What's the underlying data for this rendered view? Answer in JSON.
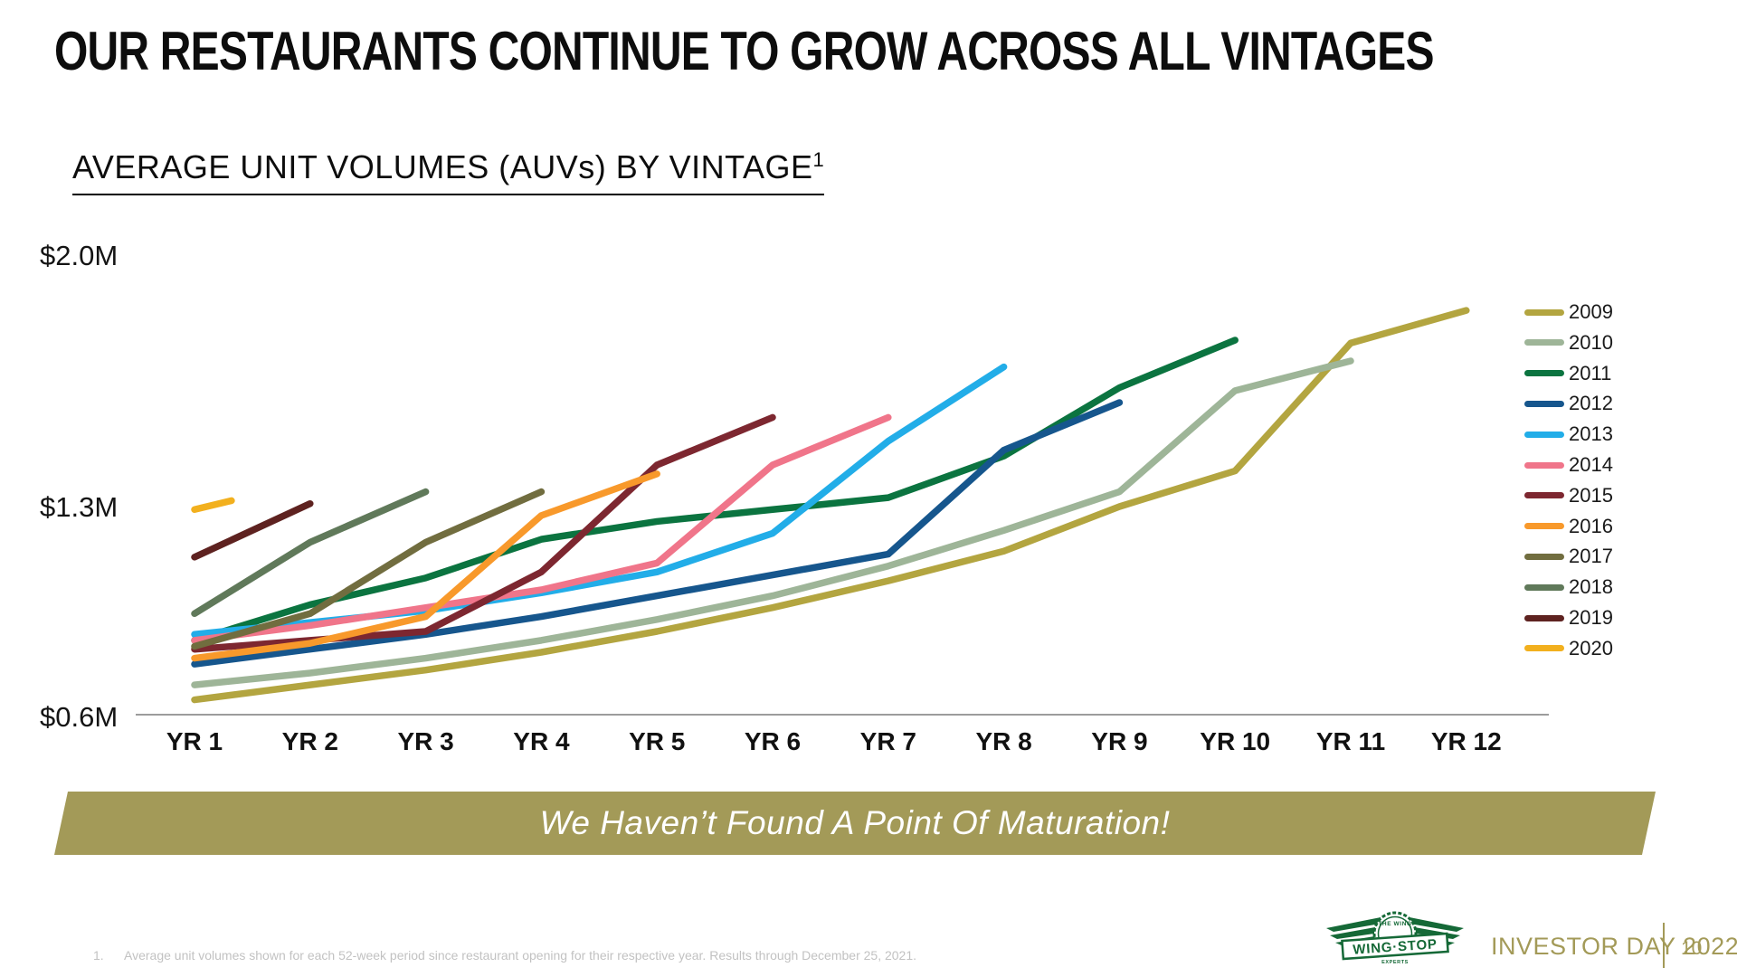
{
  "slide": {
    "title": "OUR RESTAURANTS CONTINUE TO GROW ACROSS ALL VINTAGES",
    "chart_heading": "AVERAGE UNIT VOLUMES (AUVs) BY VINTAGE",
    "chart_heading_footnote_marker": "1",
    "banner_text": "We Haven’t Found A Point Of Maturation!",
    "footnote_marker": "1.",
    "footnote_text": "Average unit volumes shown for each 52-week period since restaurant opening for their respective year. Results through December 25, 2021.",
    "footer": {
      "brand_event": "INVESTOR DAY 2022",
      "page_number": "10",
      "logo": {
        "primary": "WING·STOP",
        "tagline_top": "THE WING",
        "tagline_bottom": "EXPERTS"
      }
    }
  },
  "colors": {
    "banner_background": "#a39a58",
    "accent_olive": "#a39a58",
    "logo_green": "#156937",
    "axis_line": "#9c9c9c",
    "footnote_gray": "#c2c2c2",
    "title_black": "#0d0d0d"
  },
  "chart_data": {
    "type": "line",
    "title": "AVERAGE UNIT VOLUMES (AUVs) BY VINTAGE",
    "unit": "USD millions (AUV)",
    "x_tick_labels": [
      "YR 1",
      "YR 2",
      "YR 3",
      "YR 4",
      "YR 5",
      "YR 6",
      "YR 7",
      "YR 8",
      "YR 9",
      "YR 10",
      "YR 11",
      "YR 12"
    ],
    "y_tick_labels": [
      "$2.0M",
      "$1.3M",
      "$0.6M"
    ],
    "y_axis": {
      "min": 0.6,
      "max": 2.0,
      "ticks": [
        2.0,
        1.3,
        0.6
      ]
    },
    "grid": false,
    "legend_position": "right",
    "series": [
      {
        "name": "2009",
        "color": "#b3a540",
        "x": [
          1,
          2,
          3,
          4,
          5,
          6,
          7,
          8,
          9,
          10,
          11,
          12
        ],
        "values": [
          0.65,
          0.7,
          0.75,
          0.81,
          0.88,
          0.96,
          1.05,
          1.15,
          1.3,
          1.42,
          1.85,
          1.96
        ]
      },
      {
        "name": "2010",
        "color": "#9eb598",
        "x": [
          1,
          2,
          3,
          4,
          5,
          6,
          7,
          8,
          9,
          10,
          11
        ],
        "values": [
          0.7,
          0.74,
          0.79,
          0.85,
          0.92,
          1.0,
          1.1,
          1.22,
          1.35,
          1.69,
          1.79
        ]
      },
      {
        "name": "2011",
        "color": "#0b7440",
        "x": [
          1,
          2,
          3,
          4,
          5,
          6,
          7,
          8,
          9,
          10
        ],
        "values": [
          0.85,
          0.97,
          1.06,
          1.19,
          1.25,
          1.29,
          1.33,
          1.47,
          1.7,
          1.86
        ]
      },
      {
        "name": "2012",
        "color": "#16568d",
        "x": [
          1,
          2,
          3,
          4,
          5,
          6,
          7,
          8,
          9
        ],
        "values": [
          0.77,
          0.82,
          0.87,
          0.93,
          1.0,
          1.07,
          1.14,
          1.49,
          1.65
        ]
      },
      {
        "name": "2013",
        "color": "#22ade8",
        "x": [
          1,
          2,
          3,
          4,
          5,
          6,
          7,
          8
        ],
        "values": [
          0.87,
          0.91,
          0.95,
          1.01,
          1.08,
          1.21,
          1.52,
          1.77
        ]
      },
      {
        "name": "2014",
        "color": "#f0758a",
        "x": [
          1,
          2,
          3,
          4,
          5,
          6,
          7
        ],
        "values": [
          0.85,
          0.9,
          0.96,
          1.02,
          1.11,
          1.44,
          1.6
        ]
      },
      {
        "name": "2015",
        "color": "#7d2730",
        "x": [
          1,
          2,
          3,
          4,
          5,
          6
        ],
        "values": [
          0.82,
          0.85,
          0.88,
          1.08,
          1.44,
          1.6
        ]
      },
      {
        "name": "2016",
        "color": "#f8992b",
        "x": [
          1,
          2,
          3,
          4,
          5
        ],
        "values": [
          0.79,
          0.84,
          0.93,
          1.27,
          1.41
        ]
      },
      {
        "name": "2017",
        "color": "#716d3f",
        "x": [
          1,
          2,
          3,
          4
        ],
        "values": [
          0.83,
          0.94,
          1.18,
          1.35
        ]
      },
      {
        "name": "2018",
        "color": "#60795a",
        "x": [
          1,
          2,
          3
        ],
        "values": [
          0.94,
          1.18,
          1.35
        ]
      },
      {
        "name": "2019",
        "color": "#5e2220",
        "x": [
          1,
          2
        ],
        "values": [
          1.13,
          1.31
        ]
      },
      {
        "name": "2020",
        "color": "#f2b01e",
        "x": [
          1,
          1.32
        ],
        "values": [
          1.29,
          1.32
        ]
      }
    ]
  }
}
